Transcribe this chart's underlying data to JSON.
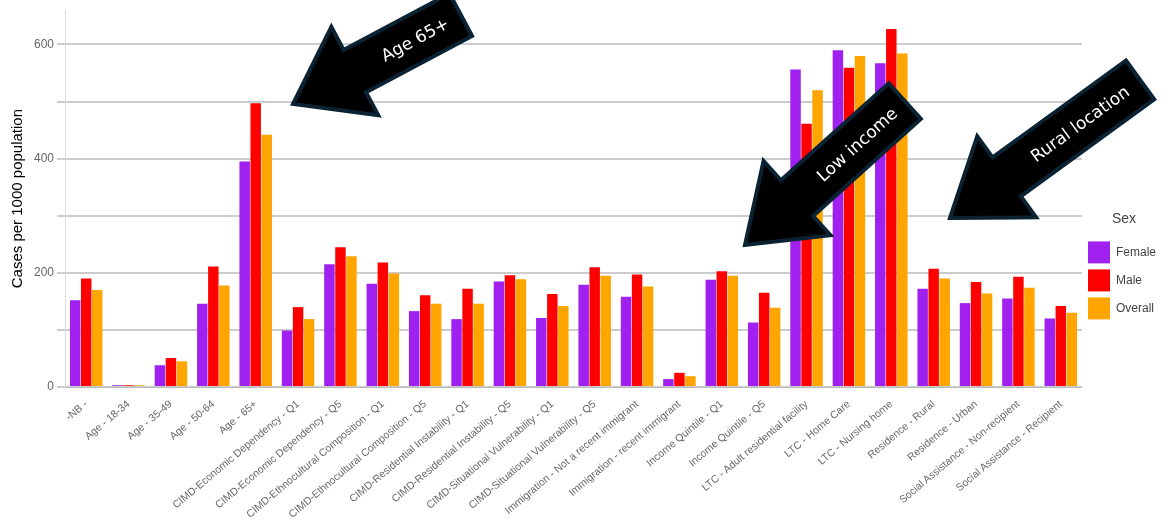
{
  "chart_data": {
    "type": "bar",
    "ylabel": "Cases per 1000 population",
    "legend_title": "Sex",
    "legend": "right",
    "grid": "y",
    "categories": [
      "-NB -",
      "Age - 18-34",
      "Age - 35-49",
      "Age - 50-64",
      "Age - 65+",
      "CIMD-Economic Dependency - Q1",
      "CIMD-Economic Dependency - Q5",
      "CIMD-Ethnocultural Composition - Q1",
      "CIMD-Ethnocultural Composition - Q5",
      "CIMD-Residential Instability - Q1",
      "CIMD-Residential Instability - Q5",
      "CIMD-Situational Vulnerability - Q1",
      "CIMD-Situational Vulnerability - Q5",
      "Immigration - Not a recent immigrant",
      "Immigration - recent immigrant",
      "Income Quintile - Q1",
      "Income Quintile - Q5",
      "LTC - Adult residential facility",
      "LTC - Home Care",
      "LTC - Nursing home",
      "Residence - Rural",
      "Residence - Urban",
      "Social Assistance - Non-recipient",
      "Social Assistance - Recipient"
    ],
    "series": [
      {
        "name": "Female",
        "color": "#a020f0",
        "values": [
          152,
          3,
          38,
          146,
          395,
          99,
          215,
          181,
          133,
          119,
          185,
          121,
          179,
          158,
          14,
          188,
          113,
          556,
          590,
          567,
          172,
          147,
          155,
          120
        ]
      },
      {
        "name": "Male",
        "color": "#ff0000",
        "values": [
          190,
          3,
          51,
          211,
          497,
          140,
          245,
          218,
          161,
          172,
          196,
          163,
          210,
          197,
          25,
          203,
          165,
          461,
          559,
          627,
          207,
          184,
          193,
          142
        ]
      },
      {
        "name": "Overall",
        "color": "#ffa500",
        "values": [
          170,
          3,
          45,
          178,
          442,
          119,
          229,
          199,
          146,
          146,
          189,
          142,
          195,
          176,
          19,
          195,
          139,
          520,
          580,
          584,
          190,
          164,
          174,
          130
        ]
      }
    ],
    "ylim": [
      0,
      660
    ],
    "yticks": [
      0,
      {
        "value": 100,
        "label": null
      },
      200,
      {
        "value": 300,
        "label": null
      },
      400,
      {
        "value": 500,
        "label": null
      },
      600
    ],
    "annotations": [
      "Age 65+",
      "Low income",
      "Rural location"
    ]
  }
}
